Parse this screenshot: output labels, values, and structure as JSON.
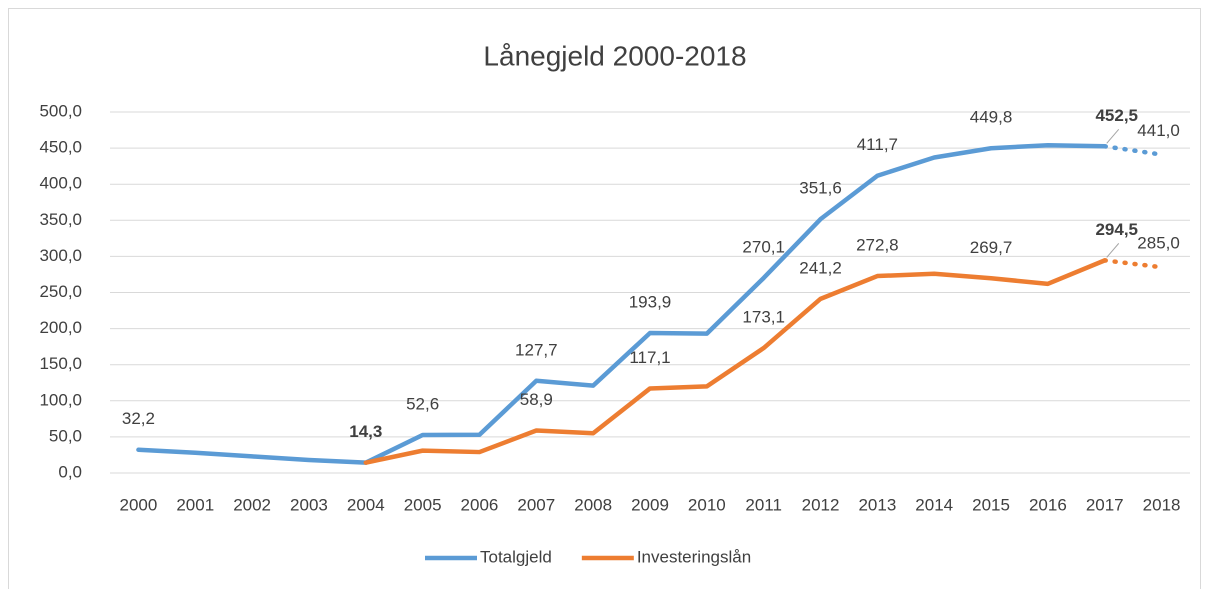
{
  "chart_data": {
    "type": "line",
    "title": "Lånegjeld 2000-2018",
    "categories": [
      "2000",
      "2001",
      "2002",
      "2003",
      "2004",
      "2005",
      "2006",
      "2007",
      "2008",
      "2009",
      "2010",
      "2011",
      "2012",
      "2013",
      "2014",
      "2015",
      "2016",
      "2017",
      "2018"
    ],
    "projection_from": "2017",
    "series": [
      {
        "name": "Totalgjeld",
        "color": "#5b9bd5",
        "values": [
          32.2,
          28,
          23,
          18,
          14.3,
          52.6,
          53,
          127.7,
          121,
          193.9,
          193,
          270.1,
          351.6,
          411.7,
          437,
          449.8,
          454,
          452.5,
          441.0
        ],
        "value_labels": [
          "32,2",
          null,
          null,
          null,
          "14,3",
          "52,6",
          null,
          "127,7",
          null,
          "193,9",
          null,
          "270,1",
          "351,6",
          "411,7",
          null,
          "449,8",
          null,
          "452,5",
          "441,0"
        ],
        "bold_labels": [
          "2004",
          "2017"
        ]
      },
      {
        "name": "Investeringslån",
        "color": "#ed7d31",
        "values": [
          null,
          null,
          null,
          null,
          14.3,
          31,
          29,
          58.9,
          55,
          117.1,
          120,
          173.1,
          241.2,
          272.8,
          276,
          269.7,
          262,
          294.5,
          285.0
        ],
        "value_labels": [
          null,
          null,
          null,
          null,
          null,
          null,
          null,
          "58,9",
          null,
          "117,1",
          null,
          "173,1",
          "241,2",
          "272,8",
          null,
          "269,7",
          null,
          "294,5",
          "285,0"
        ],
        "bold_labels": [
          "2017"
        ]
      }
    ],
    "ylim": [
      0,
      500
    ],
    "yticks": [
      {
        "value": 0,
        "label": "0,0"
      },
      {
        "value": 50,
        "label": "50,0"
      },
      {
        "value": 100,
        "label": "100,0"
      },
      {
        "value": 150,
        "label": "150,0"
      },
      {
        "value": 200,
        "label": "200,0"
      },
      {
        "value": 250,
        "label": "250,0"
      },
      {
        "value": 300,
        "label": "300,0"
      },
      {
        "value": 350,
        "label": "350,0"
      },
      {
        "value": 400,
        "label": "400,0"
      },
      {
        "value": 450,
        "label": "450,0"
      },
      {
        "value": 500,
        "label": "500,0"
      }
    ],
    "grid": true,
    "legend": "bottom"
  }
}
